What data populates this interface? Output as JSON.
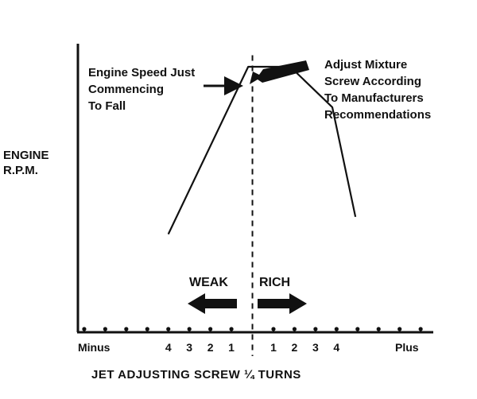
{
  "chart_data": {
    "type": "line",
    "title": "",
    "ylabel": [
      "ENGINE",
      "R.P.M."
    ],
    "xlabel": "JET ADJUSTING SCREW ¼ TURNS",
    "x_tick_labels": [
      {
        "x": -4,
        "label": "4"
      },
      {
        "x": -3,
        "label": "3"
      },
      {
        "x": -2,
        "label": "2"
      },
      {
        "x": -1,
        "label": "1"
      },
      {
        "x": 1,
        "label": "1"
      },
      {
        "x": 2,
        "label": "2"
      },
      {
        "x": 3,
        "label": "3"
      },
      {
        "x": 4,
        "label": "4"
      }
    ],
    "x_end_labels": {
      "left": "Minus",
      "right": "Plus"
    },
    "x_dot_positions": [
      -8,
      -7,
      -6,
      -5,
      -4,
      -3,
      -2,
      -1,
      1,
      2,
      3,
      4,
      5,
      6,
      7,
      8
    ],
    "xlim": [
      -8.3,
      8.6
    ],
    "ylim": [
      0,
      100
    ],
    "series": [
      {
        "points": [
          {
            "x": -4,
            "y": 34
          },
          {
            "x": -0.2,
            "y": 92
          },
          {
            "x": 1.8,
            "y": 92
          },
          {
            "x": 3.8,
            "y": 78
          },
          {
            "x": 4.9,
            "y": 40
          }
        ]
      }
    ],
    "reference_line": {
      "x": 0,
      "style": "dashed"
    },
    "zones": [
      {
        "label": "WEAK",
        "direction": "left"
      },
      {
        "label": "RICH",
        "direction": "right"
      }
    ],
    "annotations": [
      {
        "lines": [
          "Engine Speed Just",
          "Commencing",
          "To Fall"
        ],
        "points_to": "curve peak"
      },
      {
        "lines": [
          "Adjust Mixture",
          "Screw According",
          "To Manufacturers",
          "Recommendations"
        ],
        "points_to": "curve peak"
      }
    ]
  }
}
